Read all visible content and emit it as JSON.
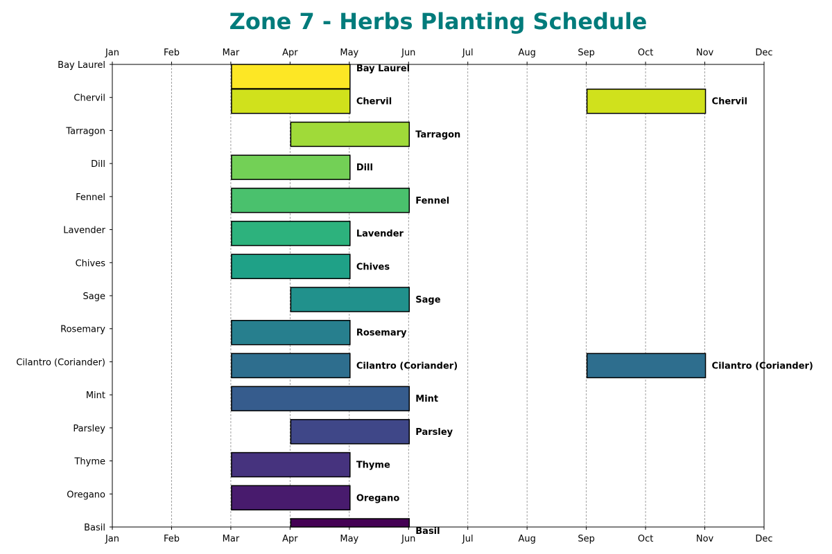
{
  "chart_data": {
    "type": "bar",
    "orientation": "horizontal-gantt",
    "title": "Zone 7 - Herbs Planting Schedule",
    "title_color": "#007b7b",
    "xlabel": "",
    "ylabel": "",
    "x_ticks": [
      "Jan",
      "Feb",
      "Mar",
      "Apr",
      "May",
      "Jun",
      "Jul",
      "Aug",
      "Sep",
      "Oct",
      "Nov",
      "Dec"
    ],
    "x_range": [
      "Jan",
      "Dec"
    ],
    "grid": "vertical dashed",
    "categories": [
      "Bay Laurel",
      "Chervil",
      "Tarragon",
      "Dill",
      "Fennel",
      "Lavender",
      "Chives",
      "Sage",
      "Rosemary",
      "Cilantro (Coriander)",
      "Mint",
      "Parsley",
      "Thyme",
      "Oregano",
      "Basil"
    ],
    "series": [
      {
        "herb": "Bay Laurel",
        "color": "#fde725",
        "windows": [
          {
            "start": "Mar 1",
            "end": "May 1"
          }
        ]
      },
      {
        "herb": "Chervil",
        "color": "#d0e11c",
        "windows": [
          {
            "start": "Mar 1",
            "end": "May 1"
          },
          {
            "start": "Sep 1",
            "end": "Nov 1"
          }
        ]
      },
      {
        "herb": "Tarragon",
        "color": "#a0da39",
        "windows": [
          {
            "start": "Apr 1",
            "end": "Jun 1"
          }
        ]
      },
      {
        "herb": "Dill",
        "color": "#73d056",
        "windows": [
          {
            "start": "Mar 1",
            "end": "May 1"
          }
        ]
      },
      {
        "herb": "Fennel",
        "color": "#4ac16d",
        "windows": [
          {
            "start": "Mar 1",
            "end": "Jun 1"
          }
        ]
      },
      {
        "herb": "Lavender",
        "color": "#2db27d",
        "windows": [
          {
            "start": "Mar 1",
            "end": "May 1"
          }
        ]
      },
      {
        "herb": "Chives",
        "color": "#1fa187",
        "windows": [
          {
            "start": "Mar 1",
            "end": "May 1"
          }
        ]
      },
      {
        "herb": "Sage",
        "color": "#21918c",
        "windows": [
          {
            "start": "Apr 1",
            "end": "Jun 1"
          }
        ]
      },
      {
        "herb": "Rosemary",
        "color": "#277f8e",
        "windows": [
          {
            "start": "Mar 1",
            "end": "May 1"
          }
        ]
      },
      {
        "herb": "Cilantro (Coriander)",
        "color": "#2e6e8e",
        "windows": [
          {
            "start": "Mar 1",
            "end": "May 1"
          },
          {
            "start": "Sep 1",
            "end": "Nov 1"
          }
        ]
      },
      {
        "herb": "Mint",
        "color": "#365c8d",
        "windows": [
          {
            "start": "Mar 1",
            "end": "Jun 1"
          }
        ]
      },
      {
        "herb": "Parsley",
        "color": "#3f4788",
        "windows": [
          {
            "start": "Apr 1",
            "end": "Jun 1"
          }
        ]
      },
      {
        "herb": "Thyme",
        "color": "#46337e",
        "windows": [
          {
            "start": "Mar 1",
            "end": "May 1"
          }
        ]
      },
      {
        "herb": "Oregano",
        "color": "#481b6d",
        "windows": [
          {
            "start": "Mar 1",
            "end": "May 1"
          }
        ]
      },
      {
        "herb": "Basil",
        "color": "#440154",
        "windows": [
          {
            "start": "Apr 1",
            "end": "Jun 1"
          }
        ]
      }
    ]
  }
}
